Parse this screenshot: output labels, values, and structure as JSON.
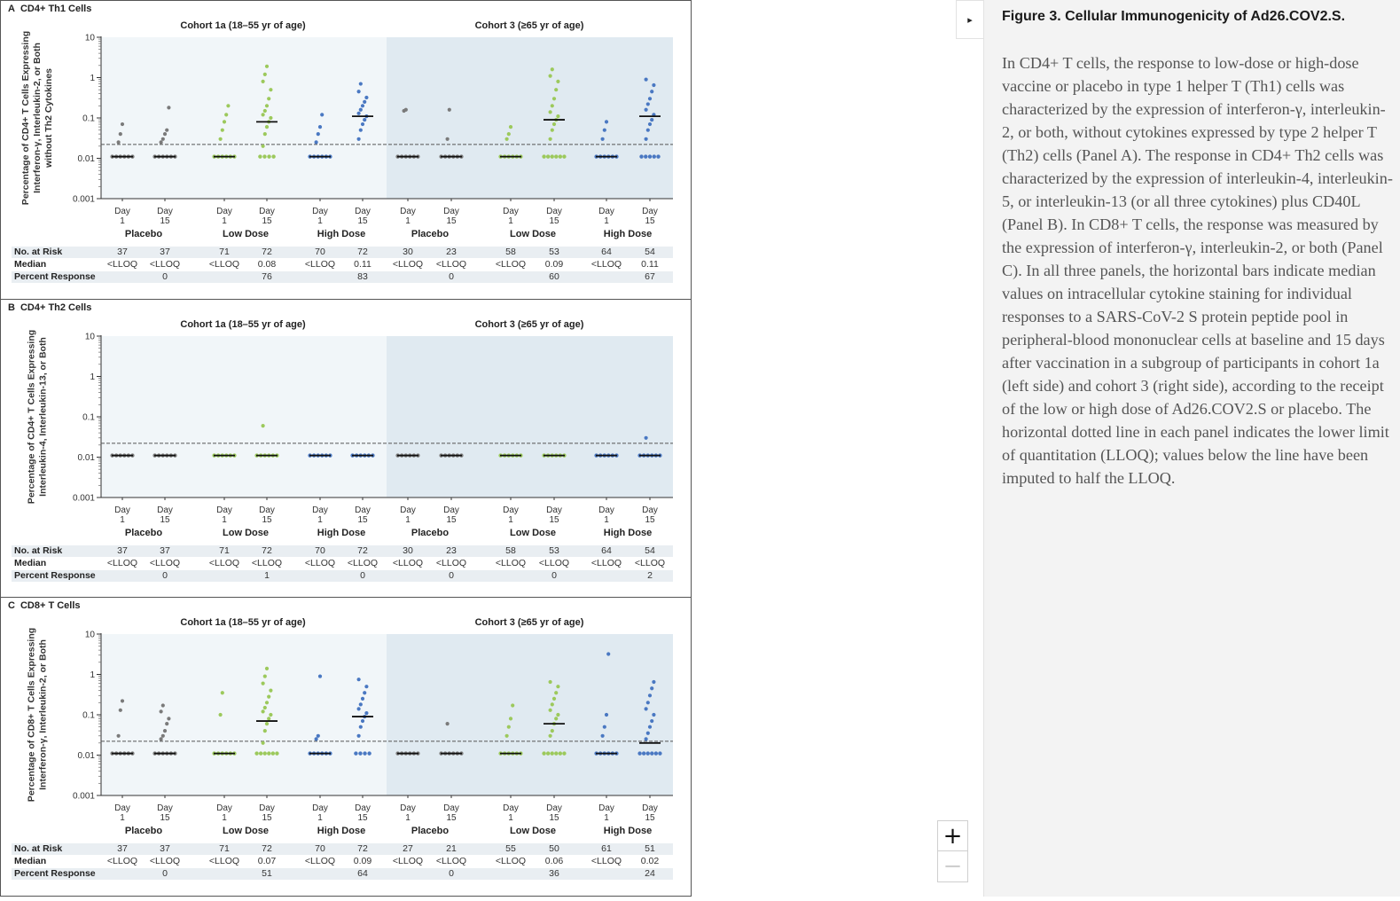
{
  "figure": {
    "panels": [
      {
        "letter": "A",
        "title": "CD4+ Th1 Cells",
        "ylabel_lines": [
          "Percentage of CD4+ T Cells Expressing",
          "Interferon-γ, Interleukin-2, or Both",
          "without Th2 Cytokines"
        ],
        "cohorts": [
          "Cohort 1a (18–55 yr of age)",
          "Cohort 3 (≥65 yr of age)"
        ],
        "y_ticks": [
          "10",
          "1",
          "0.1",
          "0.01",
          "0.001"
        ],
        "x_day_word": "Day",
        "x_days": [
          "1",
          "15",
          "1",
          "15",
          "1",
          "15",
          "1",
          "15",
          "1",
          "15",
          "1",
          "15"
        ],
        "groups": [
          "Placebo",
          "Low Dose",
          "High Dose",
          "Placebo",
          "Low Dose",
          "High Dose"
        ],
        "row_labels": [
          "No. at Risk",
          "Median",
          "Percent Response"
        ],
        "no_at_risk": [
          "37",
          "37",
          "71",
          "72",
          "70",
          "72",
          "30",
          "23",
          "58",
          "53",
          "64",
          "54"
        ],
        "median": [
          "<LLOQ",
          "<LLOQ",
          "<LLOQ",
          "0.08",
          "<LLOQ",
          "0.11",
          "<LLOQ",
          "<LLOQ",
          "<LLOQ",
          "0.09",
          "<LLOQ",
          "0.11"
        ],
        "percent_response": [
          "",
          "0",
          "",
          "76",
          "",
          "83",
          "",
          "0",
          "",
          "60",
          "",
          "67"
        ]
      },
      {
        "letter": "B",
        "title": "CD4+ Th2 Cells",
        "ylabel_lines": [
          "Percentage of CD4+ T Cells Expressing",
          "Interleukin-4, Interleukin-13, or Both"
        ],
        "cohorts": [
          "Cohort 1a (18–55 yr of age)",
          "Cohort 3 (≥65 yr of age)"
        ],
        "y_ticks": [
          "10",
          "1",
          "0.1",
          "0.01",
          "0.001"
        ],
        "x_day_word": "Day",
        "x_days": [
          "1",
          "15",
          "1",
          "15",
          "1",
          "15",
          "1",
          "15",
          "1",
          "15",
          "1",
          "15"
        ],
        "groups": [
          "Placebo",
          "Low Dose",
          "High Dose",
          "Placebo",
          "Low Dose",
          "High Dose"
        ],
        "row_labels": [
          "No. at Risk",
          "Median",
          "Percent Response"
        ],
        "no_at_risk": [
          "37",
          "37",
          "71",
          "72",
          "70",
          "72",
          "30",
          "23",
          "58",
          "53",
          "64",
          "54"
        ],
        "median": [
          "<LLOQ",
          "<LLOQ",
          "<LLOQ",
          "<LLOQ",
          "<LLOQ",
          "<LLOQ",
          "<LLOQ",
          "<LLOQ",
          "<LLOQ",
          "<LLOQ",
          "<LLOQ",
          "<LLOQ"
        ],
        "percent_response": [
          "",
          "0",
          "",
          "1",
          "",
          "0",
          "",
          "0",
          "",
          "0",
          "",
          "2"
        ]
      },
      {
        "letter": "C",
        "title": "CD8+ T Cells",
        "ylabel_lines": [
          "Percentage of CD8+ T Cells Expressing",
          "Interferon-γ, Interleukin-2, or Both"
        ],
        "cohorts": [
          "Cohort 1a (18–55 yr of age)",
          "Cohort 3 (≥65 yr of age)"
        ],
        "y_ticks": [
          "10",
          "1",
          "0.1",
          "0.01",
          "0.001"
        ],
        "x_day_word": "Day",
        "x_days": [
          "1",
          "15",
          "1",
          "15",
          "1",
          "15",
          "1",
          "15",
          "1",
          "15",
          "1",
          "15"
        ],
        "groups": [
          "Placebo",
          "Low Dose",
          "High Dose",
          "Placebo",
          "Low Dose",
          "High Dose"
        ],
        "row_labels": [
          "No. at Risk",
          "Median",
          "Percent Response"
        ],
        "no_at_risk": [
          "37",
          "37",
          "71",
          "72",
          "70",
          "72",
          "27",
          "21",
          "55",
          "50",
          "61",
          "51"
        ],
        "median": [
          "<LLOQ",
          "<LLOQ",
          "<LLOQ",
          "0.07",
          "<LLOQ",
          "0.09",
          "<LLOQ",
          "<LLOQ",
          "<LLOQ",
          "0.06",
          "<LLOQ",
          "0.02"
        ],
        "percent_response": [
          "",
          "0",
          "",
          "51",
          "",
          "64",
          "",
          "0",
          "",
          "36",
          "",
          "24"
        ]
      }
    ]
  },
  "colors": {
    "placebo": "#7a7a7a",
    "low_dose": "#9cc95c",
    "high_dose": "#4a78c2",
    "cohort1a_bg": "#f1f6f9",
    "cohort3_bg": "#e0eaf1",
    "median_bar": "#111111"
  },
  "chart_data": [
    {
      "type": "scatter",
      "panel": "A",
      "title": "CD4+ Th1 Cells",
      "ylabel": "Percentage of CD4+ T Cells Expressing Interferon-γ, Interleukin-2, or Both without Th2 Cytokines",
      "y_scale": "log",
      "ylim": [
        0.001,
        10
      ],
      "lloq": 0.022,
      "categories": [
        "Cohort 1a Placebo Day 1",
        "Cohort 1a Placebo Day 15",
        "Cohort 1a Low Dose Day 1",
        "Cohort 1a Low Dose Day 15",
        "Cohort 1a High Dose Day 1",
        "Cohort 1a High Dose Day 15",
        "Cohort 3 Placebo Day 1",
        "Cohort 3 Placebo Day 15",
        "Cohort 3 Low Dose Day 1",
        "Cohort 3 Low Dose Day 15",
        "Cohort 3 High Dose Day 1",
        "Cohort 3 High Dose Day 15"
      ],
      "group_of_category": [
        "placebo",
        "placebo",
        "low",
        "low",
        "high",
        "high",
        "placebo",
        "placebo",
        "low",
        "low",
        "high",
        "high"
      ],
      "medians": [
        0.011,
        0.011,
        0.011,
        0.08,
        0.011,
        0.11,
        0.011,
        0.011,
        0.011,
        0.09,
        0.011,
        0.11
      ],
      "points_above_lloq": [
        [
          0.025,
          0.04,
          0.07
        ],
        [
          0.025,
          0.03,
          0.04,
          0.05,
          0.18
        ],
        [
          0.03,
          0.05,
          0.08,
          0.12,
          0.2
        ],
        [
          0.02,
          0.04,
          0.06,
          0.08,
          0.1,
          0.12,
          0.15,
          0.2,
          0.3,
          0.5,
          0.8,
          1.2,
          1.9
        ],
        [
          0.025,
          0.04,
          0.06,
          0.12
        ],
        [
          0.03,
          0.05,
          0.07,
          0.09,
          0.11,
          0.13,
          0.16,
          0.2,
          0.25,
          0.32,
          0.45,
          0.7
        ],
        [
          0.15,
          0.16
        ],
        [
          0.03,
          0.16
        ],
        [
          0.03,
          0.04,
          0.06
        ],
        [
          0.03,
          0.05,
          0.07,
          0.09,
          0.11,
          0.14,
          0.2,
          0.3,
          0.5,
          0.8,
          1.1,
          1.6
        ],
        [
          0.03,
          0.05,
          0.08
        ],
        [
          0.03,
          0.05,
          0.07,
          0.09,
          0.12,
          0.16,
          0.22,
          0.3,
          0.45,
          0.65,
          0.9
        ]
      ],
      "points_below_lloq": [
        6,
        6,
        6,
        4,
        6,
        0,
        6,
        6,
        6,
        6,
        6,
        5
      ]
    },
    {
      "type": "scatter",
      "panel": "B",
      "title": "CD4+ Th2 Cells",
      "ylabel": "Percentage of CD4+ T Cells Expressing Interleukin-4, Interleukin-13, or Both",
      "y_scale": "log",
      "ylim": [
        0.001,
        10
      ],
      "lloq": 0.022,
      "categories": [
        "Cohort 1a Placebo Day 1",
        "Cohort 1a Placebo Day 15",
        "Cohort 1a Low Dose Day 1",
        "Cohort 1a Low Dose Day 15",
        "Cohort 1a High Dose Day 1",
        "Cohort 1a High Dose Day 15",
        "Cohort 3 Placebo Day 1",
        "Cohort 3 Placebo Day 15",
        "Cohort 3 Low Dose Day 1",
        "Cohort 3 Low Dose Day 15",
        "Cohort 3 High Dose Day 1",
        "Cohort 3 High Dose Day 15"
      ],
      "group_of_category": [
        "placebo",
        "placebo",
        "low",
        "low",
        "high",
        "high",
        "placebo",
        "placebo",
        "low",
        "low",
        "high",
        "high"
      ],
      "medians": [
        0.011,
        0.011,
        0.011,
        0.011,
        0.011,
        0.011,
        0.011,
        0.011,
        0.011,
        0.011,
        0.011,
        0.011
      ],
      "points_above_lloq": [
        [],
        [],
        [],
        [
          0.06
        ],
        [],
        [],
        [],
        [],
        [],
        [],
        [],
        [
          0.03
        ]
      ],
      "points_below_lloq": [
        6,
        6,
        6,
        6,
        6,
        6,
        6,
        6,
        6,
        6,
        6,
        6
      ]
    },
    {
      "type": "scatter",
      "panel": "C",
      "title": "CD8+ T Cells",
      "ylabel": "Percentage of CD8+ T Cells Expressing Interferon-γ, Interleukin-2, or Both",
      "y_scale": "log",
      "ylim": [
        0.001,
        10
      ],
      "lloq": 0.022,
      "categories": [
        "Cohort 1a Placebo Day 1",
        "Cohort 1a Placebo Day 15",
        "Cohort 1a Low Dose Day 1",
        "Cohort 1a Low Dose Day 15",
        "Cohort 1a High Dose Day 1",
        "Cohort 1a High Dose Day 15",
        "Cohort 3 Placebo Day 1",
        "Cohort 3 Placebo Day 15",
        "Cohort 3 Low Dose Day 1",
        "Cohort 3 Low Dose Day 15",
        "Cohort 3 High Dose Day 1",
        "Cohort 3 High Dose Day 15"
      ],
      "group_of_category": [
        "placebo",
        "placebo",
        "low",
        "low",
        "high",
        "high",
        "placebo",
        "placebo",
        "low",
        "low",
        "high",
        "high"
      ],
      "medians": [
        0.011,
        0.011,
        0.011,
        0.07,
        0.011,
        0.09,
        0.011,
        0.011,
        0.011,
        0.06,
        0.011,
        0.02
      ],
      "points_above_lloq": [
        [
          0.03,
          0.13,
          0.22
        ],
        [
          0.025,
          0.03,
          0.04,
          0.06,
          0.08,
          0.12,
          0.17
        ],
        [
          0.1,
          0.35
        ],
        [
          0.02,
          0.04,
          0.06,
          0.08,
          0.1,
          0.12,
          0.15,
          0.2,
          0.28,
          0.4,
          0.6,
          0.9,
          1.4
        ],
        [
          0.025,
          0.03,
          0.9
        ],
        [
          0.03,
          0.05,
          0.07,
          0.09,
          0.11,
          0.14,
          0.18,
          0.25,
          0.35,
          0.5,
          0.75
        ],
        [],
        [
          0.06
        ],
        [
          0.03,
          0.05,
          0.08,
          0.17
        ],
        [
          0.03,
          0.04,
          0.06,
          0.08,
          0.1,
          0.13,
          0.18,
          0.25,
          0.35,
          0.5,
          0.65
        ],
        [
          0.03,
          0.05,
          0.1,
          3.2
        ],
        [
          0.025,
          0.035,
          0.05,
          0.07,
          0.1,
          0.14,
          0.2,
          0.3,
          0.45,
          0.65
        ]
      ],
      "points_below_lloq": [
        6,
        6,
        6,
        6,
        6,
        4,
        6,
        6,
        6,
        6,
        6,
        6
      ]
    }
  ],
  "caption": {
    "title": "Figure 3. Cellular Immunogenicity of Ad26.COV2.S.",
    "body": "In CD4+ T cells, the response to low-dose or high-dose vaccine or placebo in type 1 helper T (Th1) cells was characterized by the expression of interferon-γ, interleukin-2, or both, without cytokines expressed by type 2 helper T (Th2) cells (Panel A). The response in CD4+ Th2 cells was characterized by the expression of interleukin-4, interleukin-5, or interleukin-13 (or all three cytokines) plus CD40L (Panel B). In CD8+ T cells, the response was measured by the expression of interferon-γ, interleukin-2, or both (Panel C). In all three panels, the horizontal bars indicate median values on intracellular cytokine staining for individual responses to a SARS-CoV-2 S protein peptide pool in peripheral-blood mononuclear cells at baseline and 15 days after vaccination in a subgroup of participants in cohort 1a (left side) and cohort 3 (right side), according to the receipt of the low or high dose of Ad26.COV2.S or placebo. The horizontal dotted line in each panel indicates the lower limit of quantitation (LLOQ); values below the line have been imputed to half the LLOQ."
  },
  "controls": {
    "toggle_icon": "▸",
    "zoom_in": "+",
    "zoom_out": "−"
  }
}
